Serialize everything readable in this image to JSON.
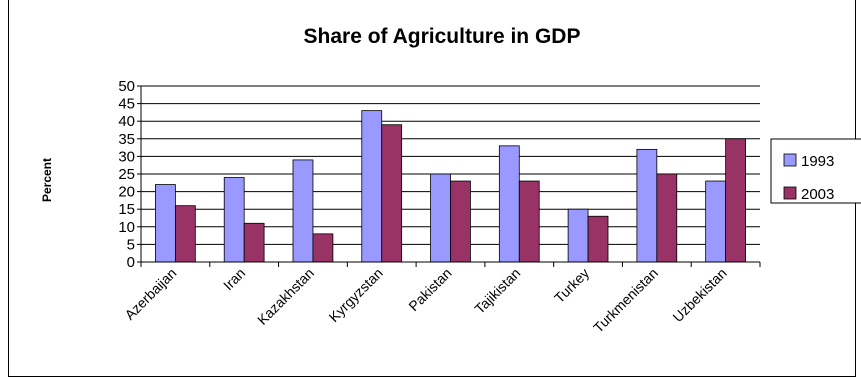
{
  "chart_data": {
    "type": "bar",
    "title": "Share of Agriculture in GDP",
    "xlabel": "",
    "ylabel": "Percent",
    "ylim": [
      0,
      50
    ],
    "yticks": [
      0,
      5,
      10,
      15,
      20,
      25,
      30,
      35,
      40,
      45,
      50
    ],
    "grid": true,
    "legend_position": "right",
    "categories": [
      "Azerbaijan",
      "Iran",
      "Kazakhstan",
      "Kyrgyzstan",
      "Pakistan",
      "Tajikistan",
      "Turkey",
      "Turkmenistan",
      "Uzbekistan"
    ],
    "series": [
      {
        "name": "1993",
        "color": "#9999ff",
        "values": [
          22,
          24,
          29,
          43,
          25,
          33,
          15,
          32,
          23
        ]
      },
      {
        "name": "2003",
        "color": "#993366",
        "values": [
          16,
          11,
          8,
          39,
          23,
          23,
          13,
          25,
          35
        ]
      }
    ]
  }
}
